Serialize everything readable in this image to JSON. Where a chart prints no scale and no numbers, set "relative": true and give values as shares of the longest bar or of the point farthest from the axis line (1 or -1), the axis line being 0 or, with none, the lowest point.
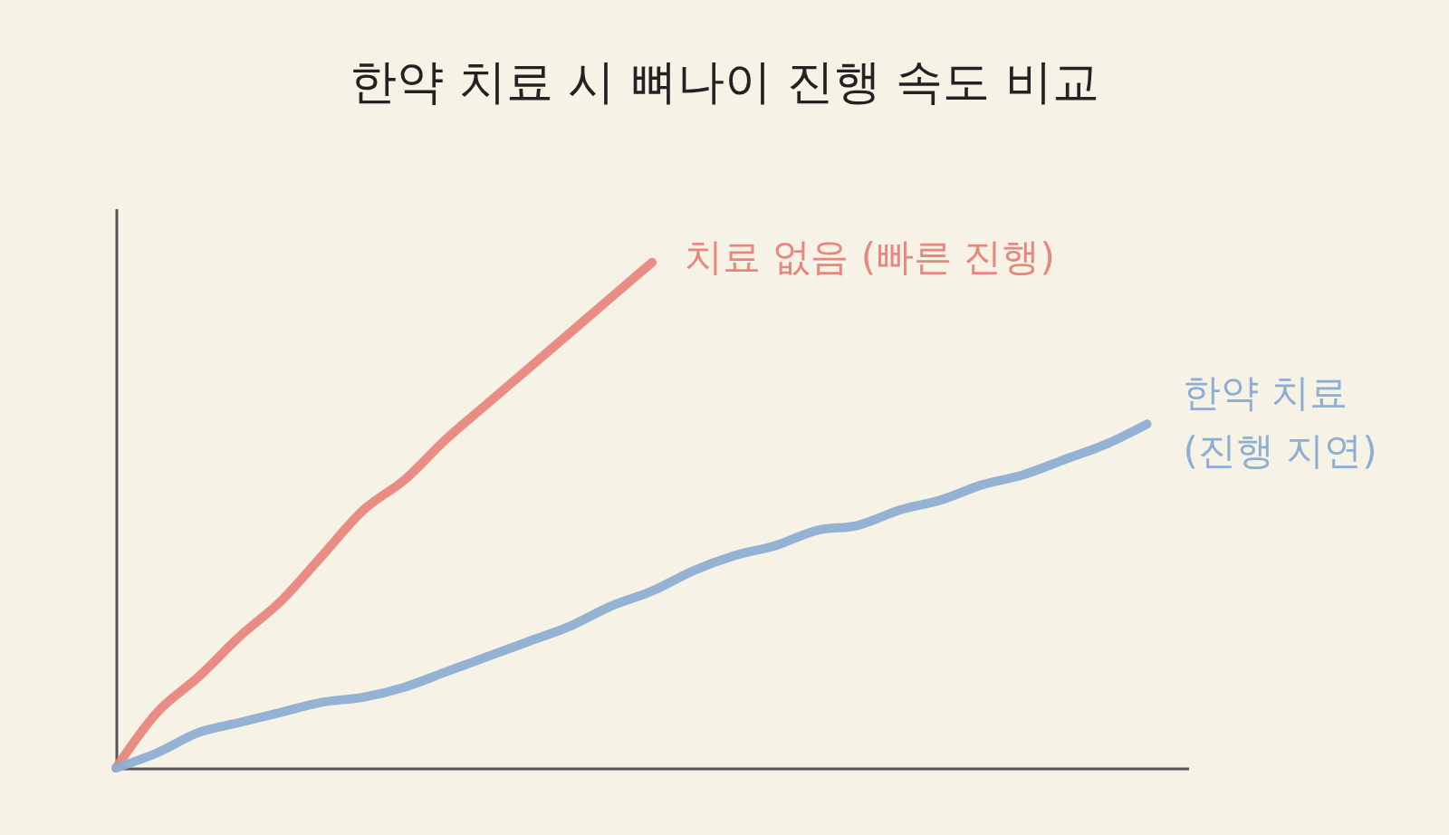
{
  "chart_data": {
    "type": "line",
    "title": "한약 치료 시 뼈나이 진행 속도 비교",
    "relative": true,
    "grid": false,
    "legend": false,
    "categories": [
      null,
      null,
      null,
      null,
      null,
      null,
      null,
      null,
      null,
      null,
      null,
      null,
      null,
      null,
      null,
      null,
      null,
      null,
      null,
      null,
      null,
      null,
      null,
      null,
      null,
      null
    ],
    "series": [
      {
        "name": "치료 없음 (빠른 진행)",
        "color": "#e8877e",
        "values": [
          0,
          0.11,
          0.18,
          0.26,
          0.33,
          0.42,
          0.51,
          0.57,
          0.65,
          0.72,
          0.79,
          0.86,
          0.93,
          1,
          null,
          null,
          null,
          null,
          null,
          null,
          null,
          null,
          null,
          null,
          null,
          null
        ]
      },
      {
        "name": "한약 치료 (진행 지연)",
        "color": "#8eaed2",
        "values": [
          0,
          0.03,
          0.07,
          0.09,
          0.11,
          0.13,
          0.14,
          0.16,
          0.19,
          0.22,
          0.25,
          0.28,
          0.32,
          0.35,
          0.39,
          0.42,
          0.44,
          0.47,
          0.48,
          0.51,
          0.53,
          0.56,
          0.58,
          0.61,
          0.64,
          0.68
        ]
      }
    ]
  }
}
